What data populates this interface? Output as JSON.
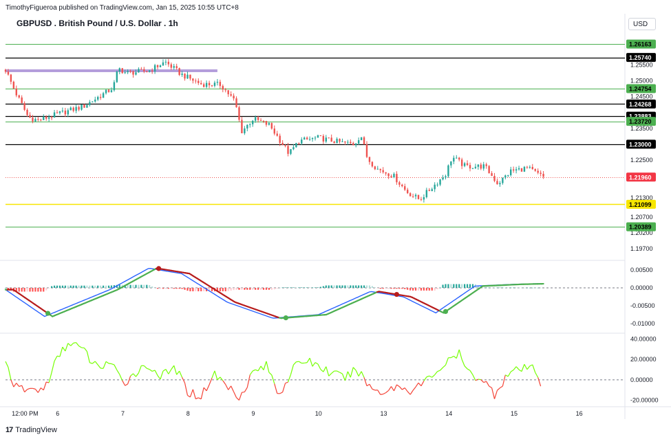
{
  "header": {
    "publisher": "TimothyFigueroa published on TradingView.com, Jan 15, 2025 10:55 UTC+8",
    "symbol_title": "GBPUSD . British Pound / U.S. Dollar . 1h",
    "currency": "USD"
  },
  "footer": {
    "logo_text": "TradingView",
    "logo_mark": "17"
  },
  "colors": {
    "up": "#26a69a",
    "down": "#ef5350",
    "level_green": "#4caf50",
    "level_black": "#000000",
    "support_yellow": "#f7e600",
    "resistance_purple": "#b39ddb",
    "macd_line": "#2962ff",
    "signal_line_up": "#4caf50",
    "signal_line_down": "#b71c1c",
    "osc_up": "#76ff03",
    "osc_down": "#f44336"
  },
  "chart_data": [
    {
      "type": "candlestick",
      "title": "GBPUSD . British Pound / U.S. Dollar . 1h",
      "ylim": [
        1.1935,
        1.266
      ],
      "yticks": [
        "1.25500",
        "1.25000",
        "1.24500",
        "1.23500",
        "1.22500",
        "1.21300",
        "1.20700",
        "1.20200",
        "1.19700"
      ],
      "ytick_values": [
        1.255,
        1.25,
        1.245,
        1.235,
        1.225,
        1.213,
        1.207,
        1.202,
        1.197
      ],
      "xticks": [
        "12:00 PM",
        "6",
        "7",
        "8",
        "9",
        "10",
        "13",
        "14",
        "15",
        "16"
      ],
      "xtick_days": [
        -0.5,
        0,
        1,
        2,
        3,
        4,
        5,
        6,
        7,
        8
      ],
      "xlim_days": [
        -0.8,
        8.7
      ],
      "level_tags": [
        {
          "label": "1.26163",
          "value": 1.26163,
          "style": "green"
        },
        {
          "label": "1.25740",
          "value": 1.2574,
          "style": "black"
        },
        {
          "label": "1.24754",
          "value": 1.24754,
          "style": "green"
        },
        {
          "label": "1.24268",
          "value": 1.24268,
          "style": "black"
        },
        {
          "label": "1.23883",
          "value": 1.23883,
          "style": "black"
        },
        {
          "label": "1.23720",
          "value": 1.2372,
          "style": "green"
        },
        {
          "label": "1.23000",
          "value": 1.23,
          "style": "black"
        },
        {
          "label": "1.21960",
          "value": 1.2196,
          "style": "price"
        },
        {
          "label": "1.21099",
          "value": 1.21099,
          "style": "yellow"
        },
        {
          "label": "1.20389",
          "value": 1.20389,
          "style": "green"
        }
      ],
      "resistance_zone": {
        "value": 1.2532,
        "from_day": -0.8,
        "to_day": 2.45
      },
      "close_anchors": [
        [
          -0.8,
          1.2535
        ],
        [
          -0.65,
          1.2465
        ],
        [
          -0.45,
          1.2385
        ],
        [
          -0.3,
          1.2375
        ],
        [
          0.0,
          1.2395
        ],
        [
          0.4,
          1.242
        ],
        [
          0.85,
          1.2478
        ],
        [
          0.93,
          1.254
        ],
        [
          1.05,
          1.2525
        ],
        [
          1.4,
          1.2532
        ],
        [
          1.65,
          1.256
        ],
        [
          1.9,
          1.252
        ],
        [
          2.2,
          1.249
        ],
        [
          2.5,
          1.2488
        ],
        [
          2.72,
          1.2435
        ],
        [
          2.82,
          1.234
        ],
        [
          3.0,
          1.238
        ],
        [
          3.25,
          1.236
        ],
        [
          3.45,
          1.23
        ],
        [
          3.55,
          1.227
        ],
        [
          3.7,
          1.231
        ],
        [
          4.0,
          1.232
        ],
        [
          4.35,
          1.2305
        ],
        [
          4.55,
          1.23
        ],
        [
          4.65,
          1.233
        ],
        [
          4.75,
          1.2255
        ],
        [
          4.9,
          1.2222
        ],
        [
          5.15,
          1.22
        ],
        [
          5.35,
          1.215
        ],
        [
          5.55,
          1.2125
        ],
        [
          5.75,
          1.2165
        ],
        [
          5.95,
          1.2205
        ],
        [
          6.05,
          1.226
        ],
        [
          6.25,
          1.223
        ],
        [
          6.55,
          1.223
        ],
        [
          6.75,
          1.2175
        ],
        [
          6.95,
          1.2215
        ],
        [
          7.2,
          1.2225
        ],
        [
          7.45,
          1.2196
        ]
      ]
    },
    {
      "type": "line",
      "ylim": [
        -0.0125,
        0.0075
      ],
      "yticks": [
        "0.00500",
        "0.00000",
        "-0.00500",
        "-0.01000"
      ],
      "ytick_values": [
        0.005,
        0.0,
        -0.005,
        -0.01
      ],
      "series": [
        {
          "role": "histogram"
        },
        {
          "role": "macd"
        },
        {
          "role": "signal"
        }
      ],
      "anchors": [
        [
          -0.8,
          -0.0005
        ],
        [
          -0.2,
          -0.008
        ],
        [
          0.8,
          -0.0005
        ],
        [
          1.4,
          0.0055
        ],
        [
          1.9,
          0.004
        ],
        [
          2.6,
          -0.004
        ],
        [
          3.3,
          -0.0085
        ],
        [
          4.0,
          -0.0075
        ],
        [
          4.8,
          -0.001
        ],
        [
          5.3,
          -0.0025
        ],
        [
          5.8,
          -0.007
        ],
        [
          6.4,
          0.0005
        ],
        [
          7.0,
          0.001
        ],
        [
          7.45,
          0.0012
        ]
      ],
      "markers": [
        {
          "day": -0.15,
          "direction": "up"
        },
        {
          "day": 1.55,
          "direction": "down"
        },
        {
          "day": 3.5,
          "direction": "up"
        },
        {
          "day": 5.2,
          "direction": "down"
        },
        {
          "day": 5.95,
          "direction": "up"
        }
      ]
    },
    {
      "type": "line",
      "ylim": [
        -25,
        45
      ],
      "yticks": [
        "40.00000",
        "20.00000",
        "0.00000",
        "-20.00000"
      ],
      "ytick_values": [
        40,
        20,
        0,
        -20
      ],
      "anchors": [
        [
          -0.8,
          18
        ],
        [
          -0.65,
          -8
        ],
        [
          -0.45,
          -10
        ],
        [
          -0.2,
          -9
        ],
        [
          0.0,
          22
        ],
        [
          0.2,
          38
        ],
        [
          0.4,
          28
        ],
        [
          0.6,
          12
        ],
        [
          0.8,
          18
        ],
        [
          1.0,
          -4
        ],
        [
          1.2,
          8
        ],
        [
          1.4,
          14
        ],
        [
          1.6,
          3
        ],
        [
          1.8,
          12
        ],
        [
          2.0,
          -12
        ],
        [
          2.2,
          -16
        ],
        [
          2.4,
          6
        ],
        [
          2.6,
          -6
        ],
        [
          2.8,
          -16
        ],
        [
          3.0,
          8
        ],
        [
          3.2,
          14
        ],
        [
          3.4,
          -14
        ],
        [
          3.6,
          10
        ],
        [
          3.8,
          20
        ],
        [
          4.0,
          14
        ],
        [
          4.2,
          6
        ],
        [
          4.4,
          2
        ],
        [
          4.6,
          10
        ],
        [
          4.8,
          -8
        ],
        [
          5.0,
          -12
        ],
        [
          5.2,
          -6
        ],
        [
          5.4,
          -10
        ],
        [
          5.6,
          -4
        ],
        [
          5.8,
          8
        ],
        [
          6.0,
          18
        ],
        [
          6.15,
          26
        ],
        [
          6.3,
          6
        ],
        [
          6.5,
          2
        ],
        [
          6.7,
          -14
        ],
        [
          6.9,
          6
        ],
        [
          7.1,
          10
        ],
        [
          7.3,
          12
        ],
        [
          7.45,
          -8
        ]
      ]
    }
  ]
}
